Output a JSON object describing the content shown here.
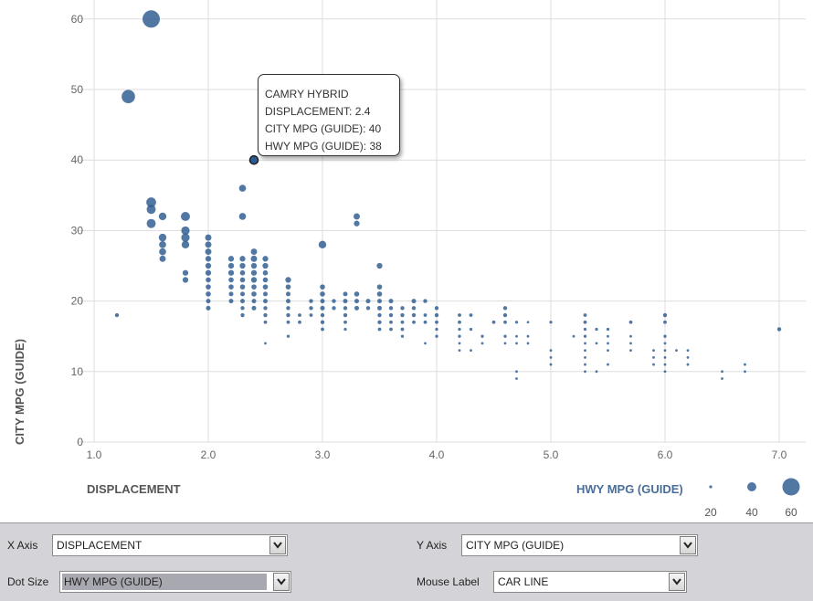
{
  "chart_data": {
    "type": "scatter",
    "xlabel": "DISPLACEMENT",
    "ylabel": "CITY MPG (GUIDE)",
    "size_label": "HWY MPG (GUIDE)",
    "xlim": [
      1.0,
      7.0
    ],
    "ylim": [
      0,
      63
    ],
    "x_ticks": [
      "1.0",
      "2.0",
      "3.0",
      "4.0",
      "5.0",
      "6.0",
      "7.0"
    ],
    "y_ticks": [
      "0",
      "10",
      "20",
      "30",
      "40",
      "50",
      "60"
    ],
    "grid": true,
    "color": "#2b5a8e",
    "size_legend": [
      {
        "label": "20",
        "value": 20
      },
      {
        "label": "40",
        "value": 40
      },
      {
        "label": "60",
        "value": 60
      }
    ],
    "highlight": {
      "x": 2.4,
      "y": 40,
      "size": 38
    },
    "tooltip": {
      "line1": "CAMRY HYBRID",
      "line2": "DISPLACEMENT: 2.4",
      "line3": "CITY MPG (GUIDE): 40",
      "line4": "HWY MPG (GUIDE): 38"
    },
    "points": [
      [
        1.5,
        60,
        60
      ],
      [
        1.3,
        49,
        51
      ],
      [
        1.2,
        18,
        24
      ],
      [
        2.4,
        40,
        38
      ],
      [
        2.3,
        36,
        34
      ],
      [
        2.3,
        32,
        34
      ],
      [
        3.3,
        32,
        32
      ],
      [
        3.3,
        31,
        30
      ],
      [
        3.0,
        28,
        36
      ],
      [
        3.5,
        25,
        30
      ],
      [
        1.5,
        34,
        42
      ],
      [
        1.5,
        33,
        40
      ],
      [
        1.5,
        31,
        40
      ],
      [
        1.6,
        32,
        36
      ],
      [
        1.6,
        29,
        36
      ],
      [
        1.6,
        28,
        34
      ],
      [
        1.6,
        27,
        34
      ],
      [
        1.6,
        26,
        32
      ],
      [
        1.8,
        32,
        40
      ],
      [
        1.8,
        30,
        38
      ],
      [
        1.8,
        29,
        38
      ],
      [
        1.8,
        28,
        36
      ],
      [
        1.8,
        24,
        30
      ],
      [
        1.8,
        23,
        30
      ],
      [
        2.0,
        29,
        32
      ],
      [
        2.0,
        28,
        32
      ],
      [
        2.0,
        27,
        32
      ],
      [
        2.0,
        26,
        30
      ],
      [
        2.0,
        25,
        30
      ],
      [
        2.0,
        24,
        30
      ],
      [
        2.0,
        23,
        28
      ],
      [
        2.0,
        22,
        28
      ],
      [
        2.0,
        21,
        28
      ],
      [
        2.0,
        20,
        26
      ],
      [
        2.0,
        19,
        26
      ],
      [
        2.2,
        26,
        30
      ],
      [
        2.2,
        25,
        30
      ],
      [
        2.2,
        24,
        30
      ],
      [
        2.2,
        23,
        28
      ],
      [
        2.2,
        22,
        28
      ],
      [
        2.2,
        21,
        26
      ],
      [
        2.2,
        20,
        26
      ],
      [
        2.3,
        26,
        30
      ],
      [
        2.3,
        25,
        30
      ],
      [
        2.3,
        24,
        28
      ],
      [
        2.3,
        23,
        28
      ],
      [
        2.3,
        22,
        28
      ],
      [
        2.3,
        21,
        26
      ],
      [
        2.3,
        20,
        26
      ],
      [
        2.3,
        19,
        24
      ],
      [
        2.3,
        18,
        24
      ],
      [
        2.4,
        27,
        32
      ],
      [
        2.4,
        26,
        32
      ],
      [
        2.4,
        25,
        30
      ],
      [
        2.4,
        24,
        30
      ],
      [
        2.4,
        23,
        30
      ],
      [
        2.4,
        22,
        28
      ],
      [
        2.4,
        21,
        28
      ],
      [
        2.4,
        20,
        26
      ],
      [
        2.4,
        19,
        26
      ],
      [
        2.5,
        26,
        30
      ],
      [
        2.5,
        25,
        30
      ],
      [
        2.5,
        24,
        28
      ],
      [
        2.5,
        23,
        28
      ],
      [
        2.5,
        22,
        28
      ],
      [
        2.5,
        21,
        26
      ],
      [
        2.5,
        20,
        26
      ],
      [
        2.5,
        19,
        24
      ],
      [
        2.5,
        18,
        24
      ],
      [
        2.5,
        17,
        22
      ],
      [
        2.5,
        14,
        16
      ],
      [
        2.7,
        23,
        30
      ],
      [
        2.7,
        22,
        28
      ],
      [
        2.7,
        21,
        26
      ],
      [
        2.7,
        20,
        26
      ],
      [
        2.7,
        19,
        24
      ],
      [
        2.7,
        18,
        24
      ],
      [
        2.7,
        17,
        22
      ],
      [
        2.7,
        15,
        20
      ],
      [
        2.8,
        18,
        22
      ],
      [
        2.8,
        17,
        22
      ],
      [
        2.9,
        20,
        24
      ],
      [
        2.9,
        19,
        24
      ],
      [
        2.9,
        18,
        22
      ],
      [
        3.0,
        22,
        28
      ],
      [
        3.0,
        21,
        28
      ],
      [
        3.0,
        20,
        26
      ],
      [
        3.0,
        19,
        26
      ],
      [
        3.0,
        18,
        24
      ],
      [
        3.0,
        17,
        24
      ],
      [
        3.0,
        16,
        22
      ],
      [
        3.1,
        20,
        24
      ],
      [
        3.1,
        19,
        24
      ],
      [
        3.2,
        21,
        26
      ],
      [
        3.2,
        20,
        26
      ],
      [
        3.2,
        19,
        24
      ],
      [
        3.2,
        18,
        24
      ],
      [
        3.2,
        17,
        22
      ],
      [
        3.2,
        16,
        20
      ],
      [
        3.3,
        21,
        28
      ],
      [
        3.3,
        20,
        26
      ],
      [
        3.3,
        19,
        26
      ],
      [
        3.4,
        20,
        26
      ],
      [
        3.4,
        19,
        24
      ],
      [
        3.5,
        22,
        28
      ],
      [
        3.5,
        21,
        28
      ],
      [
        3.5,
        20,
        26
      ],
      [
        3.5,
        19,
        26
      ],
      [
        3.5,
        18,
        24
      ],
      [
        3.5,
        17,
        24
      ],
      [
        3.5,
        16,
        22
      ],
      [
        3.6,
        20,
        26
      ],
      [
        3.6,
        19,
        24
      ],
      [
        3.6,
        18,
        24
      ],
      [
        3.6,
        17,
        22
      ],
      [
        3.6,
        16,
        22
      ],
      [
        3.7,
        19,
        24
      ],
      [
        3.7,
        18,
        24
      ],
      [
        3.7,
        17,
        22
      ],
      [
        3.7,
        16,
        22
      ],
      [
        3.7,
        15,
        20
      ],
      [
        3.8,
        20,
        26
      ],
      [
        3.8,
        19,
        24
      ],
      [
        3.8,
        18,
        24
      ],
      [
        3.8,
        17,
        22
      ],
      [
        3.9,
        20,
        24
      ],
      [
        3.9,
        18,
        22
      ],
      [
        3.9,
        17,
        22
      ],
      [
        3.9,
        14,
        16
      ],
      [
        4.0,
        19,
        24
      ],
      [
        4.0,
        18,
        24
      ],
      [
        4.0,
        17,
        22
      ],
      [
        4.0,
        16,
        20
      ],
      [
        4.0,
        15,
        20
      ],
      [
        4.2,
        18,
        22
      ],
      [
        4.2,
        17,
        22
      ],
      [
        4.2,
        16,
        20
      ],
      [
        4.2,
        15,
        20
      ],
      [
        4.2,
        14,
        18
      ],
      [
        4.2,
        13,
        18
      ],
      [
        4.3,
        18,
        22
      ],
      [
        4.3,
        16,
        20
      ],
      [
        4.3,
        13,
        16
      ],
      [
        4.4,
        15,
        20
      ],
      [
        4.4,
        14,
        18
      ],
      [
        4.5,
        17,
        22
      ],
      [
        4.6,
        19,
        24
      ],
      [
        4.6,
        18,
        24
      ],
      [
        4.6,
        17,
        22
      ],
      [
        4.6,
        15,
        20
      ],
      [
        4.6,
        14,
        18
      ],
      [
        4.7,
        17,
        20
      ],
      [
        4.7,
        15,
        18
      ],
      [
        4.7,
        14,
        18
      ],
      [
        4.7,
        10,
        12
      ],
      [
        4.7,
        9,
        10
      ],
      [
        4.8,
        17,
        18
      ],
      [
        4.8,
        15,
        18
      ],
      [
        4.8,
        14,
        18
      ],
      [
        5.0,
        17,
        20
      ],
      [
        5.0,
        13,
        16
      ],
      [
        5.0,
        12,
        16
      ],
      [
        5.0,
        11,
        16
      ],
      [
        5.2,
        15,
        18
      ],
      [
        5.3,
        18,
        22
      ],
      [
        5.3,
        17,
        22
      ],
      [
        5.3,
        16,
        20
      ],
      [
        5.3,
        15,
        20
      ],
      [
        5.3,
        14,
        18
      ],
      [
        5.3,
        13,
        16
      ],
      [
        5.3,
        12,
        16
      ],
      [
        5.3,
        11,
        14
      ],
      [
        5.3,
        10,
        12
      ],
      [
        5.4,
        16,
        20
      ],
      [
        5.4,
        14,
        16
      ],
      [
        5.4,
        10,
        12
      ],
      [
        5.5,
        16,
        20
      ],
      [
        5.5,
        15,
        18
      ],
      [
        5.5,
        14,
        16
      ],
      [
        5.5,
        13,
        16
      ],
      [
        5.5,
        11,
        14
      ],
      [
        5.7,
        17,
        22
      ],
      [
        5.7,
        15,
        18
      ],
      [
        5.7,
        14,
        16
      ],
      [
        5.7,
        13,
        16
      ],
      [
        5.9,
        13,
        16
      ],
      [
        5.9,
        12,
        16
      ],
      [
        5.9,
        11,
        14
      ],
      [
        6.0,
        18,
        24
      ],
      [
        6.0,
        17,
        22
      ],
      [
        6.0,
        15,
        20
      ],
      [
        6.0,
        14,
        18
      ],
      [
        6.0,
        13,
        16
      ],
      [
        6.0,
        12,
        16
      ],
      [
        6.0,
        11,
        14
      ],
      [
        6.0,
        10,
        12
      ],
      [
        6.1,
        13,
        16
      ],
      [
        6.2,
        13,
        16
      ],
      [
        6.2,
        12,
        14
      ],
      [
        6.2,
        11,
        14
      ],
      [
        6.5,
        10,
        12
      ],
      [
        6.5,
        9,
        10
      ],
      [
        6.7,
        11,
        14
      ],
      [
        6.7,
        10,
        12
      ],
      [
        7.0,
        16,
        24
      ]
    ]
  },
  "controls": {
    "x_axis": {
      "label": "X Axis",
      "value": "DISPLACEMENT"
    },
    "y_axis": {
      "label": "Y Axis",
      "value": "CITY MPG (GUIDE)"
    },
    "dot_size": {
      "label": "Dot Size",
      "value": "HWY MPG (GUIDE)"
    },
    "mouse_label": {
      "label": "Mouse Label",
      "value": "CAR LINE"
    }
  },
  "icons": {
    "dropdown": "chevron-down-icon"
  }
}
